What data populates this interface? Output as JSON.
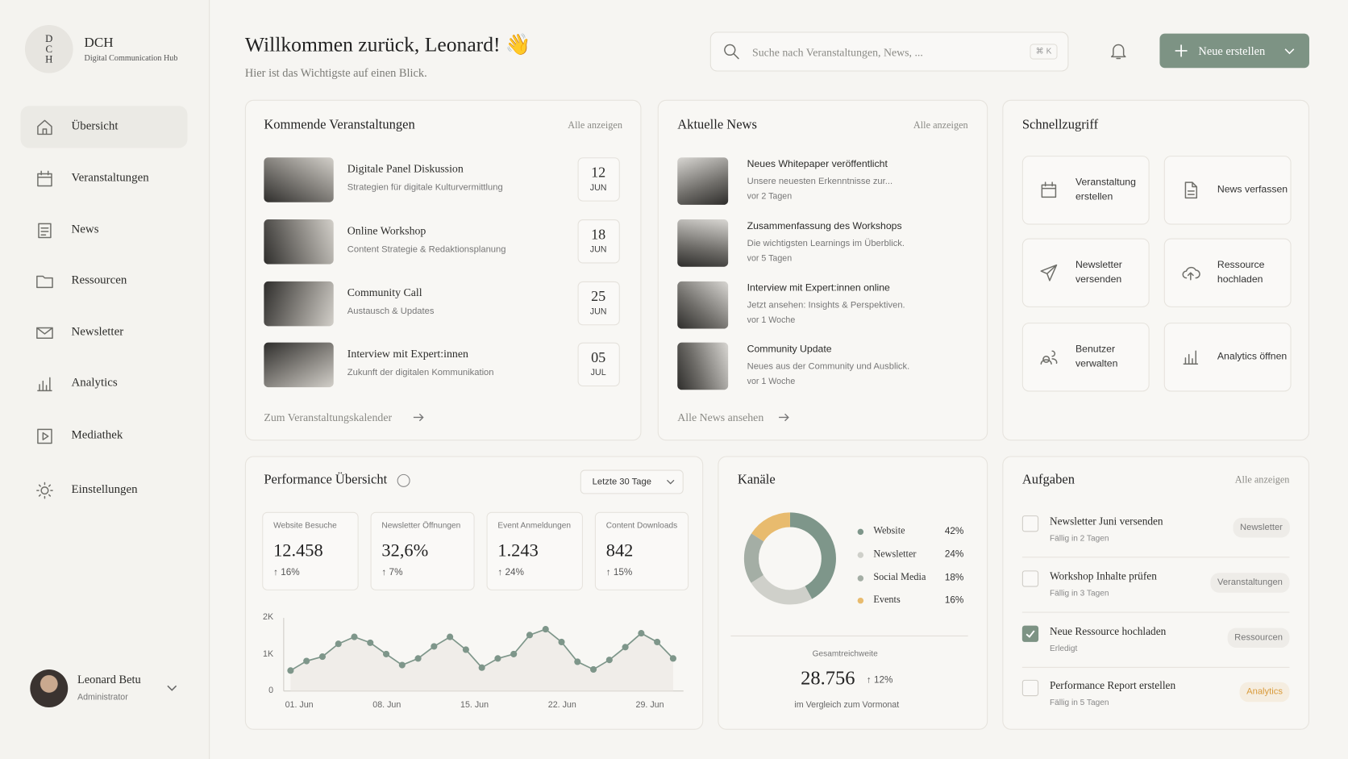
{
  "brand": {
    "logo_letters": [
      "D",
      "C",
      "H"
    ],
    "name": "DCH",
    "subtitle": "Digital Communication Hub"
  },
  "nav": [
    {
      "label": "Übersicht",
      "active": true
    },
    {
      "label": "Veranstaltungen",
      "active": false
    },
    {
      "label": "News",
      "active": false
    },
    {
      "label": "Ressourcen",
      "active": false
    },
    {
      "label": "Newsletter",
      "active": false
    },
    {
      "label": "Analytics",
      "active": false
    },
    {
      "label": "Mediathek",
      "active": false
    },
    {
      "label": "Einstellungen",
      "active": false
    }
  ],
  "user": {
    "name": "Leonard Betu",
    "role": "Administrator"
  },
  "header": {
    "title": "Willkommen zurück, Leonard! 👋",
    "subtitle": "Hier ist das Wichtigste auf einen Blick.",
    "search_placeholder": "Suche nach Veranstaltungen, News, ...",
    "shortcut": "⌘ K",
    "create_button": "Neue erstellen"
  },
  "events": {
    "title": "Kommende Veranstaltungen",
    "link": "Alle anzeigen",
    "footer_link": "Zum Veranstaltungskalender",
    "items": [
      {
        "title": "Digitale Panel Diskussion",
        "subtitle": "Strategien für digitale Kulturvermittlung",
        "day": "12",
        "month": "JUN"
      },
      {
        "title": "Online Workshop",
        "subtitle": "Content Strategie & Redaktionsplanung",
        "day": "18",
        "month": "JUN"
      },
      {
        "title": "Community Call",
        "subtitle": "Austausch & Updates",
        "day": "25",
        "month": "JUN"
      },
      {
        "title": "Interview mit Expert:innen",
        "subtitle": "Zukunft der digitalen Kommunikation",
        "day": "05",
        "month": "JUL"
      }
    ]
  },
  "news": {
    "title": "Aktuelle News",
    "link": "Alle anzeigen",
    "footer_link": "Alle News ansehen",
    "items": [
      {
        "title": "Neues Whitepaper veröffentlicht",
        "text": "Unsere neuesten Erkenntnisse zur...",
        "time": "vor 2 Tagen"
      },
      {
        "title": "Zusammenfassung des Workshops",
        "text": "Die wichtigsten Learnings im Überblick.",
        "time": "vor 5 Tagen"
      },
      {
        "title": "Interview mit Expert:innen online",
        "text": "Jetzt ansehen: Insights & Perspektiven.",
        "time": "vor 1 Woche"
      },
      {
        "title": "Community Update",
        "text": "Neues aus der Community und Ausblick.",
        "time": "vor 1 Woche"
      }
    ]
  },
  "quick_access": {
    "title": "Schnellzugriff",
    "items": [
      "Veranstaltung erstellen",
      "News verfassen",
      "Newsletter versenden",
      "Ressource hochladen",
      "Benutzer verwalten",
      "Analytics öffnen"
    ]
  },
  "performance": {
    "title": "Performance Übersicht",
    "period": "Letzte 30 Tage",
    "kpis": [
      {
        "label": "Website Besuche",
        "value": "12.458",
        "change": "↑ 16%"
      },
      {
        "label": "Newsletter Öffnungen",
        "value": "32,6%",
        "change": "↑ 7%"
      },
      {
        "label": "Event Anmeldungen",
        "value": "1.243",
        "change": "↑ 24%"
      },
      {
        "label": "Content Downloads",
        "value": "842",
        "change": "↑ 15%"
      }
    ],
    "chart": {
      "type": "line",
      "color": "#7e968a",
      "x": [
        0,
        1,
        2,
        3,
        4,
        5,
        6,
        7,
        8,
        9,
        10,
        11,
        12,
        13,
        14,
        15,
        16,
        17,
        18,
        19,
        20,
        21,
        22,
        23,
        24
      ],
      "values": [
        560,
        820,
        940,
        1290,
        1480,
        1320,
        1010,
        710,
        890,
        1220,
        1480,
        1130,
        640,
        890,
        1010,
        1530,
        1690,
        1340,
        800,
        590,
        850,
        1200,
        1580,
        1340,
        890
      ],
      "xlim": [
        0,
        24
      ],
      "xticks": [
        {
          "value": 0,
          "label": "01. Jun"
        },
        {
          "value": 5.5,
          "label": "08. Jun"
        },
        {
          "value": 11,
          "label": "15. Jun"
        },
        {
          "value": 16.5,
          "label": "22. Jun"
        },
        {
          "value": 22,
          "label": "29. Jun"
        }
      ],
      "ylim": [
        0,
        2000
      ],
      "yticks": [
        {
          "value": 2000,
          "label": "2K"
        },
        {
          "value": 1000,
          "label": "1K"
        },
        0
      ]
    }
  },
  "channels": {
    "title": "Kanäle",
    "type": "pie",
    "categories": [
      "Website",
      "Newsletter",
      "Social Media",
      "Events"
    ],
    "values": [
      42,
      24,
      18,
      16
    ],
    "value_labels": [
      "42%",
      "24%",
      "18%",
      "16%"
    ],
    "colors": [
      "#7e968a",
      "#cfd0ca",
      "#a4aea5",
      "#e8bb6e"
    ],
    "total_label": "Gesamtreichweite",
    "total": "28.756",
    "total_change": "↑ 12%",
    "comparison": "im Vergleich zum Vormonat"
  },
  "tasks": {
    "title": "Aufgaben",
    "link": "Alle anzeigen",
    "items": [
      {
        "title": "Newsletter Juni versenden",
        "due": "Fällig in 2 Tagen",
        "tag": "Newsletter",
        "done": false
      },
      {
        "title": "Workshop Inhalte prüfen",
        "due": "Fällig in 3 Tagen",
        "tag": "Veranstaltungen",
        "done": false
      },
      {
        "title": "Neue Ressource hochladen",
        "due": "Erledigt",
        "tag": "Ressourcen",
        "done": true
      },
      {
        "title": "Performance Report erstellen",
        "due": "Fällig in 5 Tagen",
        "tag": "Analytics",
        "done": false
      }
    ]
  }
}
